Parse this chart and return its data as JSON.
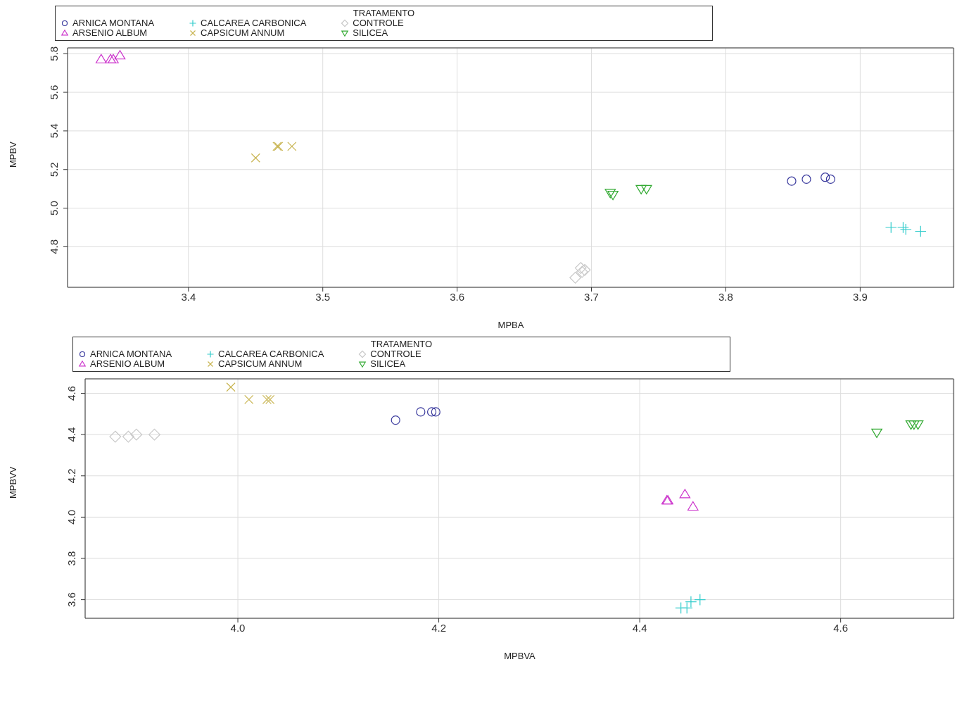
{
  "chart_data": [
    {
      "type": "scatter",
      "xlabel": "MPBA",
      "ylabel": "MPBV",
      "legend_title": "TRATAMENTO",
      "legend": "top",
      "grid": true,
      "xlim": [
        3.31,
        3.97
      ],
      "xticks": [
        3.4,
        3.5,
        3.6,
        3.7,
        3.8,
        3.9
      ],
      "ylim": [
        4.59,
        5.83
      ],
      "yticks": [
        4.8,
        {
          "value": 5,
          "label": "5.0"
        },
        5.2,
        5.4,
        5.6,
        5.8
      ],
      "series": [
        {
          "name": "ARNICA MONTANA",
          "color": "#3b3b9e",
          "marker": "circle",
          "x": [
            3.849,
            3.86,
            3.874,
            3.878
          ],
          "values": [
            5.14,
            5.15,
            5.16,
            5.15
          ]
        },
        {
          "name": "ARSENIO ALBUM",
          "color": "#cc33cc",
          "marker": "triangle",
          "x": [
            3.335,
            3.342,
            3.344,
            3.349
          ],
          "values": [
            5.77,
            5.77,
            5.77,
            5.79
          ]
        },
        {
          "name": "CALCAREA CARBONICA",
          "color": "#33cccc",
          "marker": "cross",
          "x": [
            3.923,
            3.932,
            3.934,
            3.945
          ],
          "values": [
            4.9,
            4.9,
            4.89,
            4.88
          ]
        },
        {
          "name": "CAPSICUM ANNUM",
          "color": "#c8b450",
          "marker": "x",
          "x": [
            3.45,
            3.466,
            3.467,
            3.477
          ],
          "values": [
            5.26,
            5.32,
            5.32,
            5.32
          ]
        },
        {
          "name": "CONTROLE",
          "color": "#c8c8c8",
          "marker": "diamond",
          "x": [
            3.688,
            3.692,
            3.695,
            3.693
          ],
          "values": [
            4.64,
            4.69,
            4.68,
            4.67
          ]
        },
        {
          "name": "SILICEA",
          "color": "#33aa33",
          "marker": "triangle-down",
          "x": [
            3.714,
            3.716,
            3.737,
            3.741
          ],
          "values": [
            5.08,
            5.07,
            5.1,
            5.1
          ]
        }
      ]
    },
    {
      "type": "scatter",
      "xlabel": "MPBVA",
      "ylabel": "MPBVV",
      "legend_title": "TRATAMENTO",
      "legend": "top",
      "grid": true,
      "xlim": [
        3.848,
        4.713
      ],
      "xticks": [
        {
          "value": 4,
          "label": "4.0"
        },
        4.2,
        4.4,
        4.6
      ],
      "ylim": [
        3.51,
        4.67
      ],
      "yticks": [
        3.6,
        3.8,
        {
          "value": 4,
          "label": "4.0"
        },
        4.2,
        4.4,
        4.6
      ],
      "series": [
        {
          "name": "ARNICA MONTANA",
          "color": "#3b3b9e",
          "marker": "circle",
          "x": [
            4.157,
            4.182,
            4.193,
            4.197
          ],
          "values": [
            4.47,
            4.51,
            4.51,
            4.51
          ]
        },
        {
          "name": "ARSENIO ALBUM",
          "color": "#cc33cc",
          "marker": "triangle",
          "x": [
            4.427,
            4.428,
            4.445,
            4.453
          ],
          "values": [
            4.08,
            4.08,
            4.11,
            4.05
          ]
        },
        {
          "name": "CALCAREA CARBONICA",
          "color": "#33cccc",
          "marker": "cross",
          "x": [
            4.441,
            4.447,
            4.451,
            4.46
          ],
          "values": [
            3.56,
            3.56,
            3.59,
            3.6
          ]
        },
        {
          "name": "CAPSICUM ANNUM",
          "color": "#c8b450",
          "marker": "x",
          "x": [
            3.993,
            4.011,
            4.029,
            4.032
          ],
          "values": [
            4.63,
            4.57,
            4.57,
            4.57
          ]
        },
        {
          "name": "CONTROLE",
          "color": "#c8c8c8",
          "marker": "diamond",
          "x": [
            3.878,
            3.891,
            3.899,
            3.917
          ],
          "values": [
            4.39,
            4.39,
            4.4,
            4.4
          ]
        },
        {
          "name": "SILICEA",
          "color": "#33aa33",
          "marker": "triangle-down",
          "x": [
            4.636,
            4.67,
            4.673,
            4.677
          ],
          "values": [
            4.41,
            4.45,
            4.45,
            4.45
          ]
        }
      ]
    }
  ]
}
